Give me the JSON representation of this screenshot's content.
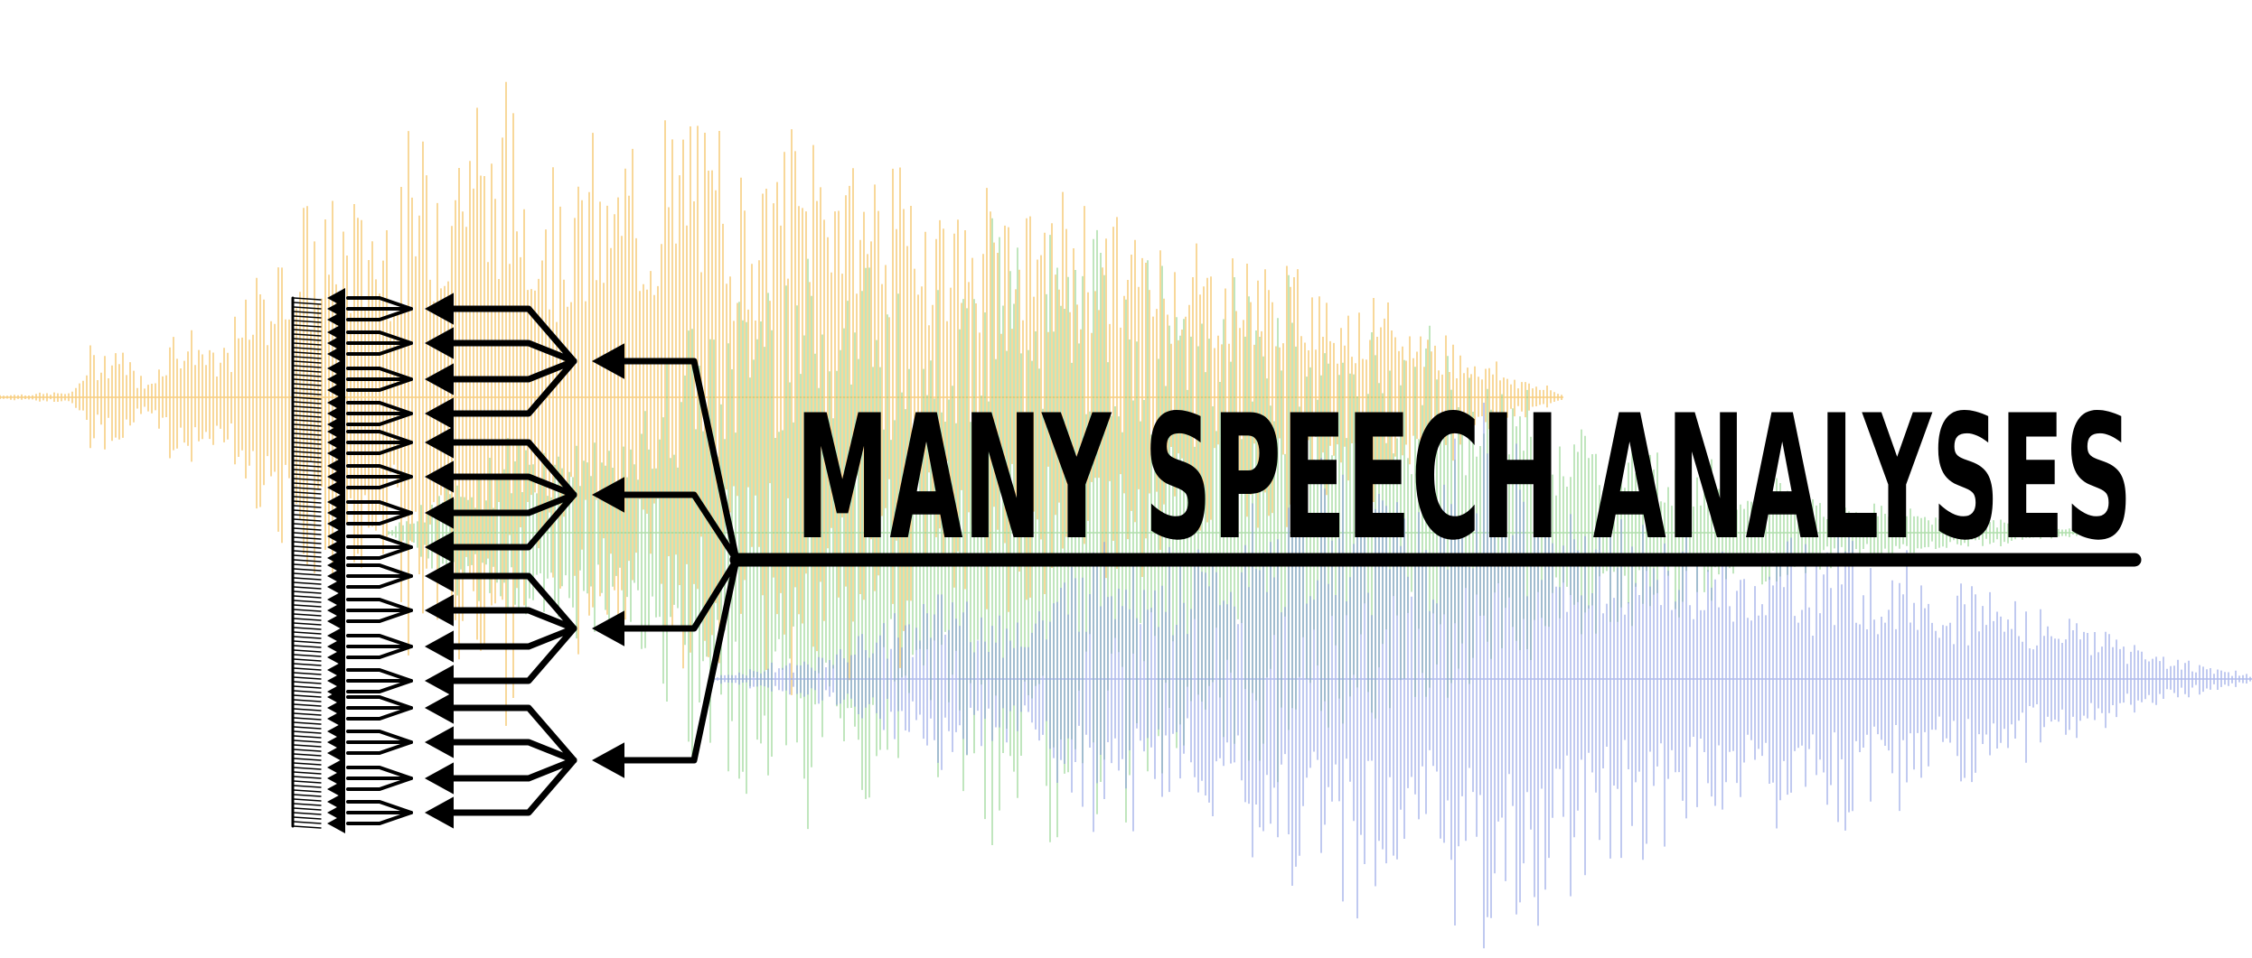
{
  "logo": {
    "title": "MANY SPEECH ANALYSES"
  },
  "colors": {
    "background": "#ffffff",
    "waveform_orange": "#f6c56b",
    "waveform_green": "#8fd18a",
    "waveform_blue": "#7d8fe0",
    "ink": "#000000"
  },
  "icons": [
    "branching-tree-icon",
    "speech-waveform-icon"
  ]
}
